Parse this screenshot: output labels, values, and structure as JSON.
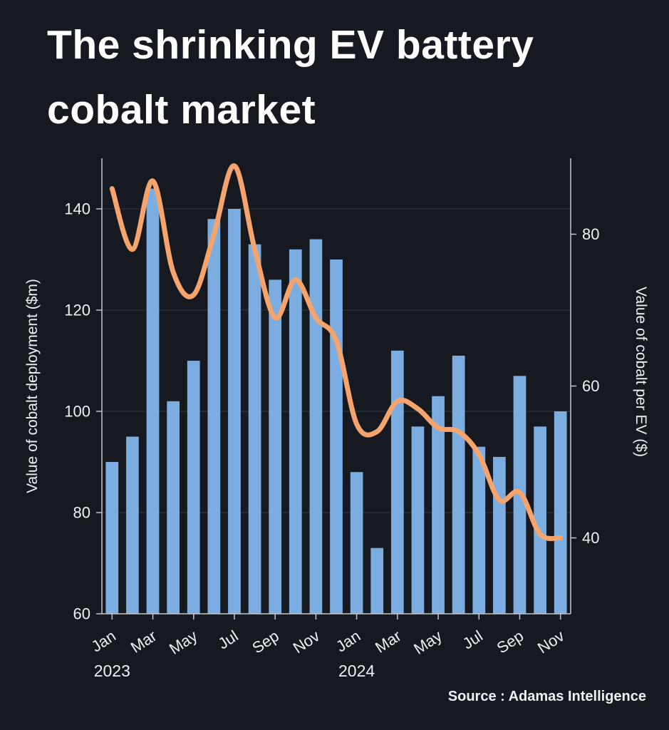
{
  "title": {
    "line1": "The shrinking EV battery",
    "line2": "cobalt market",
    "full": "The shrinking EV battery cobalt market"
  },
  "source": "Source : Adamas Intelligence",
  "colors": {
    "background": "#16191f",
    "bar": "#7bade0",
    "line": "#f4a46c",
    "grid": "#33383f",
    "axis": "#c2c6cc",
    "text": "#eef0f2"
  },
  "chart_data": {
    "type": "combo",
    "title": "The shrinking EV battery cobalt market",
    "x": [
      "Jan 2023",
      "Feb 2023",
      "Mar 2023",
      "Apr 2023",
      "May 2023",
      "Jun 2023",
      "Jul 2023",
      "Aug 2023",
      "Sep 2023",
      "Oct 2023",
      "Nov 2023",
      "Dec 2023",
      "Jan 2024",
      "Feb 2024",
      "Mar 2024",
      "Apr 2024",
      "May 2024",
      "Jun 2024",
      "Jul 2024",
      "Aug 2024",
      "Sep 2024",
      "Oct 2024",
      "Nov 2024"
    ],
    "series": [
      {
        "name": "Value of cobalt deployment ($m)",
        "type": "bar",
        "axis": "left",
        "values": [
          90,
          95,
          144,
          102,
          110,
          138,
          140,
          133,
          126,
          132,
          134,
          130,
          88,
          73,
          112,
          97,
          103,
          111,
          93,
          91,
          107,
          97,
          100
        ]
      },
      {
        "name": "Value of cobalt per EV ($)",
        "type": "line",
        "axis": "right",
        "values": [
          86,
          78,
          87,
          75,
          72,
          80,
          89,
          78,
          69,
          74,
          69,
          66,
          55,
          54,
          58,
          57,
          54.5,
          54,
          51,
          45,
          46,
          40.5,
          40
        ]
      }
    ],
    "left_axis": {
      "label": "Value of cobalt deployment ($m)",
      "ticks": [
        60,
        80,
        100,
        120,
        140
      ],
      "range": [
        60,
        150
      ]
    },
    "right_axis": {
      "label": "Value of cobalt per EV ($)",
      "ticks": [
        40,
        60,
        80
      ],
      "range": [
        30,
        90
      ]
    },
    "x_tick_labels": [
      "Jan",
      "Mar",
      "May",
      "Jul",
      "Sep",
      "Nov",
      "Jan",
      "Mar",
      "May",
      "Jul",
      "Sep",
      "Nov"
    ],
    "x_tick_indices": [
      0,
      2,
      4,
      6,
      8,
      10,
      12,
      14,
      16,
      18,
      20,
      22
    ],
    "year_labels": [
      {
        "text": "2023",
        "index": 0
      },
      {
        "text": "2024",
        "index": 12
      }
    ],
    "grid": true,
    "legend_position": "none"
  }
}
